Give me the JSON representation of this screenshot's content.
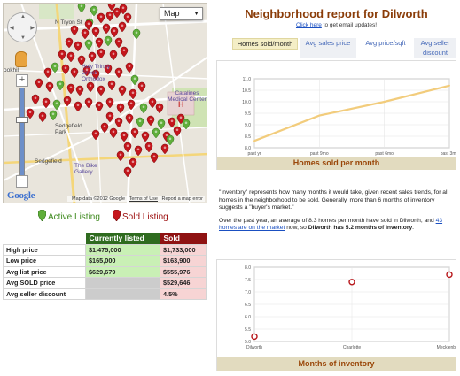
{
  "map": {
    "type_label": "Map",
    "copyright": "Map data ©2012 Google",
    "terms": "Terms of Use",
    "report_error": "Report a map error",
    "logo": "Google",
    "labels": {
      "tryon": "N Tryon St",
      "holy_trinity": "Holy Trinity Greek Orthodox",
      "catalines": "Catalines Medical Center",
      "sedgefield": "Sedgefield Park",
      "sedgefield2": "Sedgefield",
      "bike_gallery": "The Bike Gallery",
      "brookhill": "ookhill"
    },
    "icons": [
      "pan-control-icon",
      "pegman-icon",
      "zoom-in-icon",
      "zoom-out-icon",
      "map-pin-active-icon",
      "map-pin-sold-icon"
    ],
    "pin_colors": {
      "active": "#5fae3a",
      "sold": "#c4161c"
    }
  },
  "legend": {
    "active": "Active Listing",
    "sold": "Sold Listing"
  },
  "stats": {
    "headers": {
      "current": "Currently listed",
      "sold": "Sold"
    },
    "rows": [
      {
        "label": "High price",
        "current": "$1,475,000",
        "sold": "$1,733,000"
      },
      {
        "label": "Low price",
        "current": "$165,000",
        "sold": "$163,900"
      },
      {
        "label": "Avg list price",
        "current": "$629,679",
        "sold": "$555,976"
      },
      {
        "label": "Avg SOLD price",
        "current": "",
        "sold": "$529,646"
      },
      {
        "label": "Avg seller discount",
        "current": "",
        "sold": "4.5%"
      }
    ]
  },
  "report": {
    "title": "Neighborhood report for Dilworth",
    "email_link": "Click here",
    "email_rest": " to get email updates!",
    "tabs": [
      "Homes sold/month",
      "Avg sales price",
      "Avg price/sqft",
      "Avg seller discount"
    ]
  },
  "notes": {
    "p1": "\"Inventory\" represents how many months it would take, given recent sales trends, for all homes in the neighborhood to be sold. Generally, more than 6 months of inventory suggests a \"buyer's market.\"",
    "p2_a": "Over the past year, an average of 8.3 homes per month have sold in Dilworth, and ",
    "p2_link": "43 homes are on the market",
    "p2_b": " now, so ",
    "p2_bold": "Dilworth has 5.2 months of inventory",
    "p2_end": "."
  },
  "chart_data": [
    {
      "type": "line",
      "title": "Homes sold per month",
      "categories": [
        "past yr",
        "past 9mo",
        "past 6mo",
        "past 3mo"
      ],
      "values": [
        8.3,
        9.4,
        10.0,
        10.7
      ],
      "ylim": [
        8.0,
        11.0
      ],
      "yticks": [
        "8.0",
        "8.5",
        "9.0",
        "9.5",
        "10.0",
        "10.5",
        "11.0"
      ],
      "line_color": "#f2cc7c",
      "grid": true
    },
    {
      "type": "scatter",
      "title": "Months of inventory",
      "categories": [
        "Dilworth",
        "Charlotte",
        "Mecklenburg"
      ],
      "values": [
        5.2,
        7.4,
        7.7
      ],
      "ylim": [
        5.0,
        8.0
      ],
      "yticks": [
        "5.0",
        "5.5",
        "6.0",
        "6.5",
        "7.0",
        "7.5",
        "8.0"
      ],
      "marker_color": "#b8181c",
      "grid": true
    }
  ]
}
